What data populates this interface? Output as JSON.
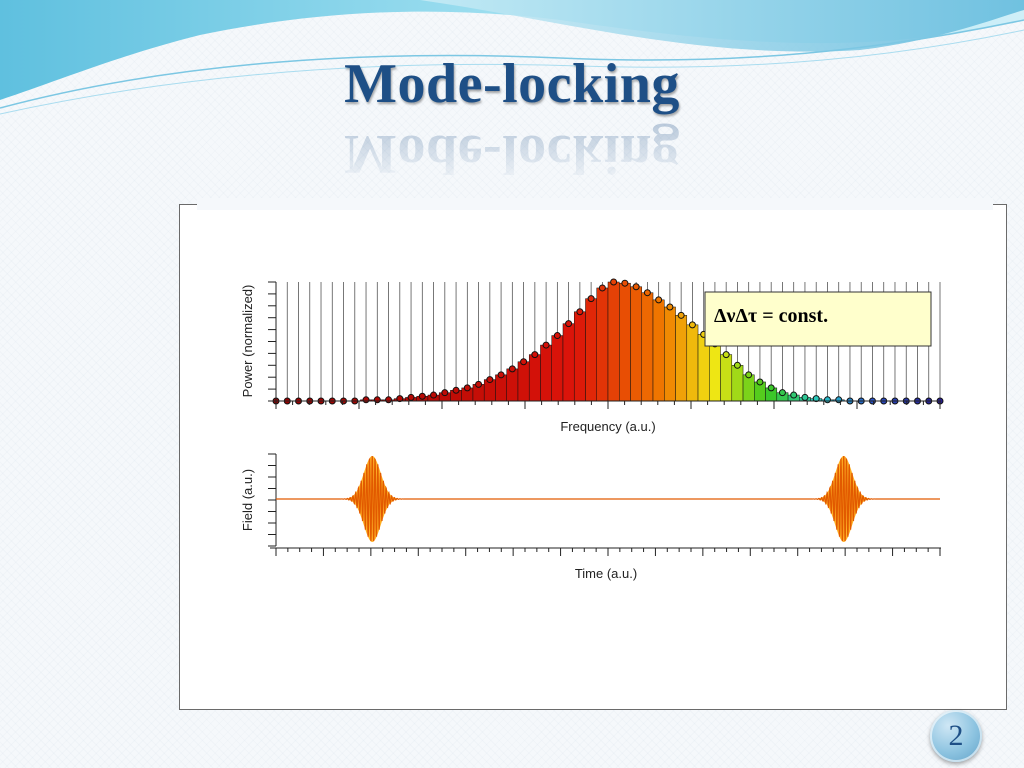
{
  "slide": {
    "title": "Mode-locking",
    "page_number": "2"
  },
  "colors": {
    "title": "#1e4f86",
    "wave_light": "#8fd6ea",
    "wave_mid": "#4fb3d8",
    "field_outer": "#ffa500",
    "field_inner": "#e25a00",
    "baseline": "#e25a00"
  },
  "chart_data": [
    {
      "type": "bar",
      "description_key": "spectrum",
      "xlabel": "Frequency (a.u.)",
      "ylabel": "Power (normalized)",
      "ylim": [
        0,
        1
      ],
      "grid": "vertical lines at each mode",
      "annotation": "ΔνΔτ = const.",
      "modes": 60,
      "peak_index": 30,
      "values": [
        0.0,
        0.0,
        0.0,
        0.0,
        0.0,
        0.0,
        0.0,
        0.0,
        0.01,
        0.01,
        0.01,
        0.02,
        0.03,
        0.04,
        0.05,
        0.07,
        0.09,
        0.11,
        0.14,
        0.18,
        0.22,
        0.27,
        0.33,
        0.39,
        0.47,
        0.55,
        0.65,
        0.75,
        0.86,
        0.95,
        1.0,
        0.99,
        0.96,
        0.91,
        0.85,
        0.79,
        0.72,
        0.64,
        0.56,
        0.48,
        0.39,
        0.3,
        0.22,
        0.16,
        0.11,
        0.07,
        0.05,
        0.03,
        0.02,
        0.01,
        0.01,
        0.0,
        0.0,
        0.0,
        0.0,
        0.0,
        0.0,
        0.0,
        0.0,
        0.0
      ],
      "colormap": "red to orange to yellow to green to cyan to blue"
    },
    {
      "type": "line",
      "description_key": "field",
      "xlabel": "Time (a.u.)",
      "ylabel": "Field (a.u.)",
      "pulse_centers": [
        0.145,
        0.855
      ],
      "pulse_amplitude": 1.0,
      "carrier_cycles_in_pulse": 12
    }
  ]
}
